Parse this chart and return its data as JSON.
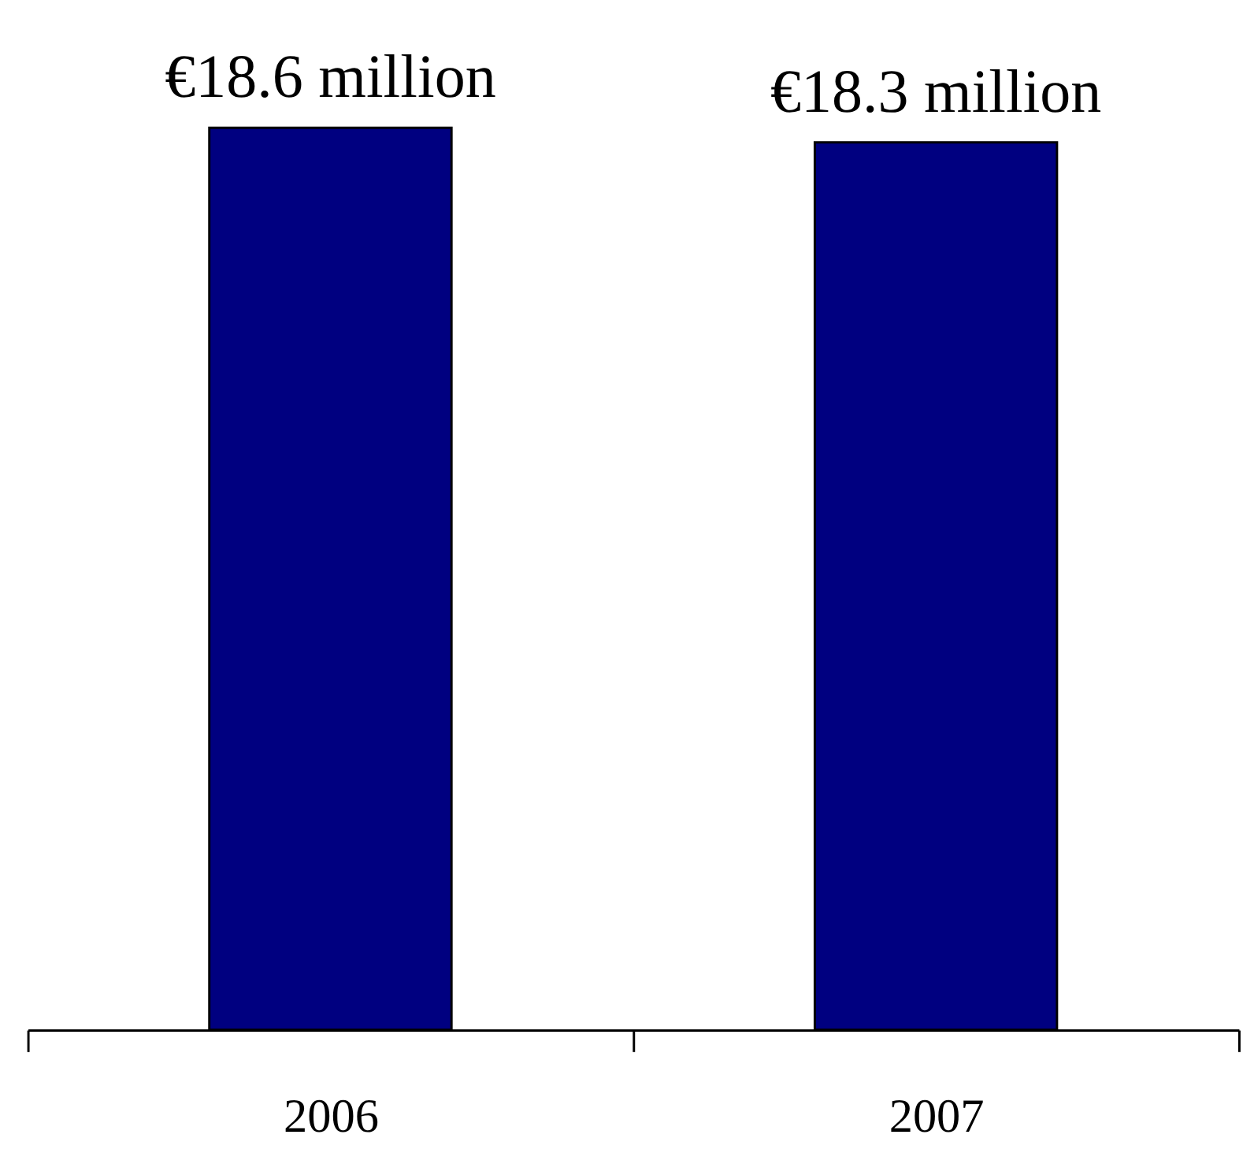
{
  "chart_data": {
    "type": "bar",
    "categories": [
      "2006",
      "2007"
    ],
    "values": [
      18.6,
      18.3
    ],
    "value_labels": [
      "€18.6 million",
      "€18.3 million"
    ],
    "color": "#000080"
  }
}
